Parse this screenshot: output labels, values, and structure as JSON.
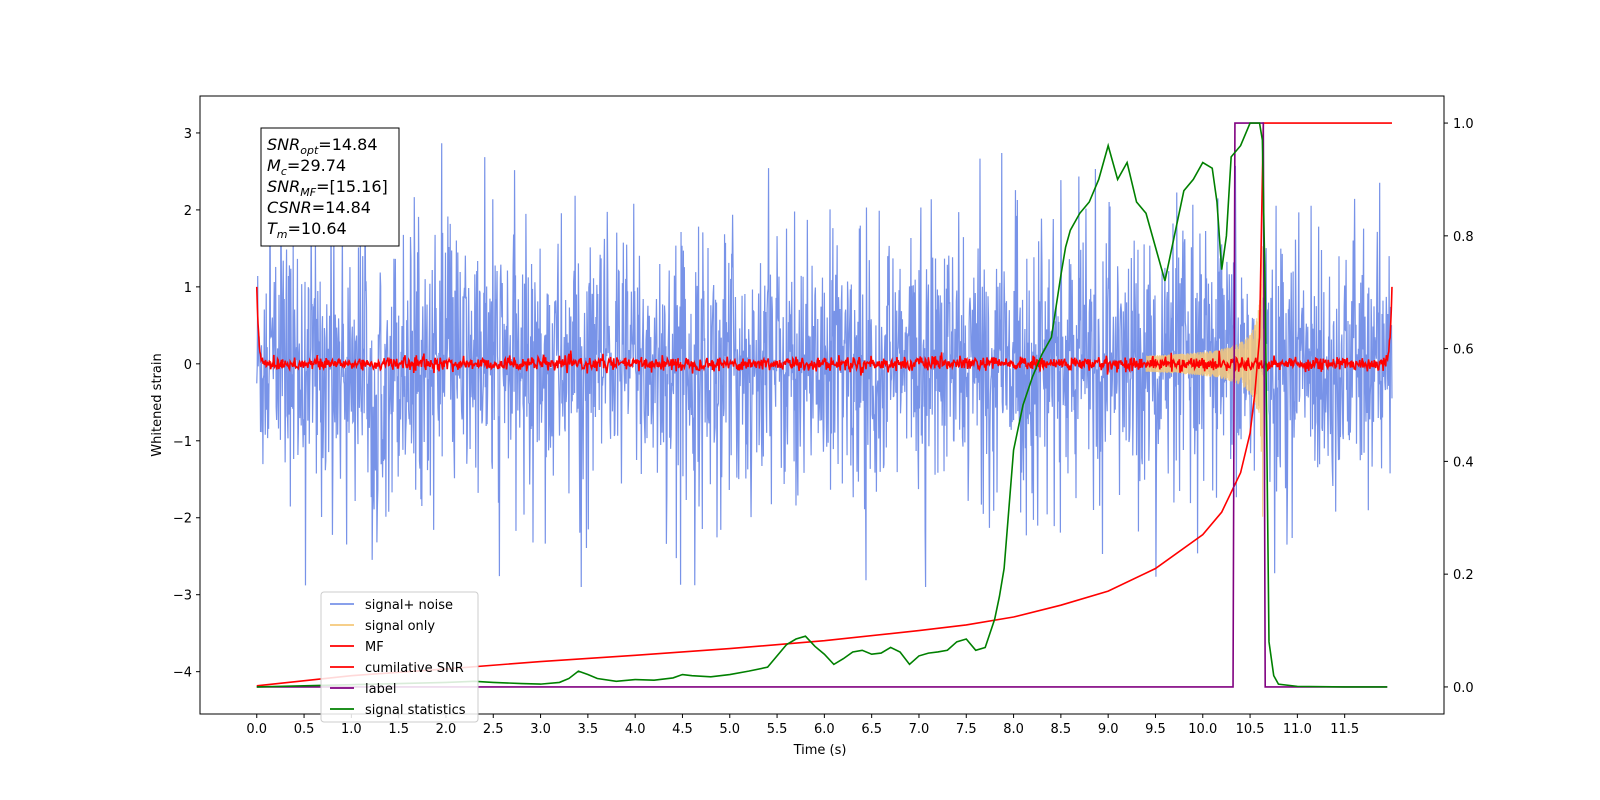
{
  "chart_data": {
    "type": "line",
    "title": "",
    "xlabel": "Time (s)",
    "ylabel": "Whitened strain",
    "xlim": [
      -0.6,
      12.55
    ],
    "ylim": [
      -4.55,
      3.48
    ],
    "y2lim": [
      -0.048,
      1.048
    ],
    "xticks": [
      0.0,
      0.5,
      1.0,
      1.5,
      2.0,
      2.5,
      3.0,
      3.5,
      4.0,
      4.5,
      5.0,
      5.5,
      6.0,
      6.5,
      7.0,
      7.5,
      8.0,
      8.5,
      9.0,
      9.5,
      10.0,
      10.5,
      11.0,
      11.5
    ],
    "xtick_labels": [
      "0.0",
      "0.5",
      "1.0",
      "1.5",
      "2.0",
      "2.5",
      "3.0",
      "3.5",
      "4.0",
      "4.5",
      "5.0",
      "5.5",
      "6.0",
      "6.5",
      "7.0",
      "7.5",
      "8.0",
      "8.5",
      "9.0",
      "9.5",
      "10.0",
      "10.5",
      "11.0",
      "11.5"
    ],
    "yticks": [
      -4,
      -3,
      -2,
      -1,
      0,
      1,
      2,
      3
    ],
    "ytick_labels": [
      "−4",
      "−3",
      "−2",
      "−1",
      "0",
      "1",
      "2",
      "3"
    ],
    "y2ticks": [
      0.0,
      0.2,
      0.4,
      0.6,
      0.8,
      1.0
    ],
    "y2tick_labels": [
      "0.0",
      "0.2",
      "0.4",
      "0.6",
      "0.8",
      "1.0"
    ],
    "grid": false,
    "legend_position": "lower-left",
    "annotation_lines": [
      {
        "main": "SNR",
        "sub": "opt",
        "rest": "=14.84"
      },
      {
        "main": "M",
        "sub": "c",
        "rest": "=29.74"
      },
      {
        "main": "SNR",
        "sub": "MF",
        "rest": "=[15.16]"
      },
      {
        "main": "CSNR",
        "sub": "",
        "rest": "=14.84"
      },
      {
        "main": "T",
        "sub": "m",
        "rest": "=10.64"
      }
    ],
    "series": [
      {
        "name": "signal+ noise",
        "color": "#7893e8",
        "axis": "left",
        "kind": "noise",
        "x_range": [
          0.0,
          12.0
        ],
        "peak_range": [
          -2.9,
          3.1
        ]
      },
      {
        "name": "signal only",
        "color": "#f5c87a",
        "axis": "left",
        "kind": "chirp",
        "merger_time": 10.64
      },
      {
        "name": "MF",
        "color": "#ff0000",
        "axis": "left",
        "kind": "mf",
        "x_range": [
          0.0,
          12.0
        ],
        "edge_value": 1.0
      },
      {
        "name": "cumilative SNR",
        "color": "#ff0000",
        "axis": "right",
        "x": [
          0.0,
          1.0,
          2.0,
          3.0,
          4.0,
          5.0,
          6.0,
          7.0,
          7.5,
          8.0,
          8.5,
          9.0,
          9.5,
          10.0,
          10.2,
          10.4,
          10.5,
          10.55,
          10.6,
          10.64,
          12.0
        ],
        "y": [
          0.002,
          0.02,
          0.032,
          0.045,
          0.056,
          0.068,
          0.082,
          0.1,
          0.11,
          0.124,
          0.145,
          0.17,
          0.21,
          0.27,
          0.31,
          0.38,
          0.45,
          0.52,
          0.62,
          1.0,
          1.0
        ]
      },
      {
        "name": "label",
        "color": "#800080",
        "axis": "right",
        "x": [
          0.0,
          10.32,
          10.34,
          10.64,
          10.66,
          11.95
        ],
        "y": [
          0.0,
          0.0,
          1.0,
          1.0,
          0.0,
          0.0
        ]
      },
      {
        "name": "signal statistics",
        "color": "#008000",
        "axis": "right",
        "x": [
          0.0,
          0.5,
          1.0,
          1.5,
          2.0,
          2.3,
          2.5,
          2.8,
          3.0,
          3.2,
          3.3,
          3.4,
          3.5,
          3.6,
          3.8,
          4.0,
          4.2,
          4.4,
          4.5,
          4.6,
          4.8,
          5.0,
          5.2,
          5.4,
          5.5,
          5.6,
          5.7,
          5.8,
          5.9,
          6.0,
          6.1,
          6.2,
          6.3,
          6.4,
          6.5,
          6.6,
          6.7,
          6.8,
          6.9,
          7.0,
          7.1,
          7.2,
          7.3,
          7.4,
          7.5,
          7.6,
          7.7,
          7.8,
          7.85,
          7.9,
          8.0,
          8.1,
          8.2,
          8.3,
          8.4,
          8.5,
          8.55,
          8.6,
          8.7,
          8.8,
          8.9,
          9.0,
          9.1,
          9.2,
          9.3,
          9.4,
          9.5,
          9.6,
          9.7,
          9.8,
          9.9,
          10.0,
          10.1,
          10.15,
          10.2,
          10.25,
          10.3,
          10.4,
          10.5,
          10.6,
          10.63,
          10.66,
          10.7,
          10.75,
          10.8,
          11.0,
          11.5,
          11.95
        ],
        "y": [
          0.0,
          0.002,
          0.004,
          0.006,
          0.008,
          0.01,
          0.008,
          0.006,
          0.005,
          0.008,
          0.015,
          0.028,
          0.022,
          0.015,
          0.01,
          0.013,
          0.012,
          0.016,
          0.022,
          0.02,
          0.018,
          0.022,
          0.028,
          0.035,
          0.055,
          0.075,
          0.085,
          0.09,
          0.072,
          0.058,
          0.04,
          0.05,
          0.062,
          0.065,
          0.058,
          0.06,
          0.07,
          0.062,
          0.04,
          0.055,
          0.06,
          0.062,
          0.065,
          0.08,
          0.085,
          0.065,
          0.07,
          0.12,
          0.16,
          0.21,
          0.42,
          0.5,
          0.55,
          0.59,
          0.62,
          0.73,
          0.78,
          0.81,
          0.84,
          0.86,
          0.9,
          0.96,
          0.9,
          0.93,
          0.86,
          0.84,
          0.78,
          0.72,
          0.8,
          0.88,
          0.9,
          0.93,
          0.92,
          0.86,
          0.74,
          0.8,
          0.94,
          0.96,
          1.0,
          1.0,
          0.97,
          0.7,
          0.08,
          0.02,
          0.005,
          0.001,
          0.0,
          0.0
        ]
      }
    ]
  }
}
